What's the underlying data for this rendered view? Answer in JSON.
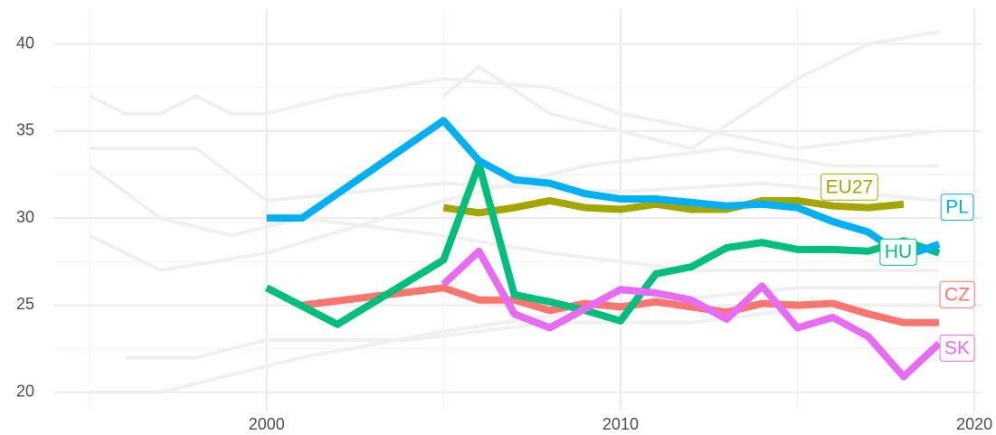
{
  "chart_data": {
    "type": "line",
    "xlim": [
      1994,
      2020.2
    ],
    "xticks": [
      2000,
      2010,
      2020
    ],
    "x_minor_ticks": [
      1995,
      2005,
      2015
    ],
    "ylim": [
      18.9,
      42
    ],
    "yticks": [
      20,
      25,
      30,
      35,
      40
    ],
    "y_minor_ticks": [
      22.5,
      27.5,
      32.5,
      37.5
    ],
    "grid": true,
    "series": [
      {
        "color": "#f0f0f0",
        "x": [
          1995,
          1996,
          1997,
          1998,
          1999,
          2000,
          2002,
          2005,
          2008,
          2010,
          2015,
          2019
        ],
        "values": [
          37,
          36,
          36,
          37,
          36,
          36,
          37,
          38,
          37.5,
          36,
          34,
          35
        ]
      },
      {
        "color": "#f0f0f0",
        "x": [
          1995,
          1997,
          1999,
          2001,
          2005,
          2008,
          2012,
          2016,
          2019
        ],
        "values": [
          33,
          30,
          29,
          30,
          29,
          28,
          27,
          27,
          27
        ]
      },
      {
        "color": "#f0f0f0",
        "x": [
          1996,
          1998,
          2000,
          2004,
          2008,
          2012,
          2016,
          2019
        ],
        "values": [
          22,
          22,
          23,
          23,
          24,
          24,
          25,
          25
        ]
      },
      {
        "color": "#f0f0f0",
        "x": [
          1995,
          1997,
          1999,
          2001,
          2005,
          2010,
          2015,
          2019
        ],
        "values": [
          20,
          20,
          21,
          22,
          23.5,
          25,
          26,
          26
        ]
      },
      {
        "color": "#f0f0f0",
        "x": [
          2005,
          2006,
          2008,
          2012,
          2015,
          2017,
          2019
        ],
        "values": [
          37,
          38.7,
          36,
          34,
          38,
          40,
          40.7
        ]
      },
      {
        "color": "#f0f0f0",
        "x": [
          1995,
          1997,
          2000,
          2005,
          2009,
          2013,
          2016,
          2019
        ],
        "values": [
          29,
          27,
          28,
          31,
          33,
          34,
          33,
          33
        ]
      },
      {
        "color": "#f0f0f0",
        "x": [
          1995,
          1998,
          2000,
          2005,
          2010,
          2014,
          2019
        ],
        "values": [
          34,
          34,
          31,
          32,
          31.5,
          32,
          31
        ]
      },
      {
        "name": "CZ",
        "color": "#f8766d",
        "x": [
          2001,
          2005,
          2006,
          2007,
          2008,
          2009,
          2010,
          2011,
          2012,
          2013,
          2014,
          2015,
          2016,
          2017,
          2018,
          2019
        ],
        "values": [
          25.0,
          26.0,
          25.3,
          25.3,
          24.7,
          25.1,
          24.9,
          25.2,
          24.9,
          24.6,
          25.1,
          25.0,
          25.1,
          24.5,
          24.0,
          24.0
        ]
      },
      {
        "name": "EU27",
        "color": "#a3a500",
        "x": [
          2005,
          2006,
          2007,
          2008,
          2009,
          2010,
          2011,
          2012,
          2013,
          2014,
          2015,
          2016,
          2017,
          2018
        ],
        "values": [
          30.6,
          30.3,
          30.6,
          31.0,
          30.6,
          30.5,
          30.8,
          30.5,
          30.5,
          31.0,
          31.0,
          30.7,
          30.6,
          30.8
        ]
      },
      {
        "name": "HU",
        "color": "#00bf7d",
        "x": [
          2000,
          2002,
          2005,
          2006,
          2007,
          2008,
          2009,
          2010,
          2011,
          2012,
          2013,
          2014,
          2015,
          2016,
          2017,
          2018,
          2019
        ],
        "values": [
          26.0,
          23.9,
          27.6,
          33.1,
          25.6,
          25.2,
          24.7,
          24.1,
          26.8,
          27.2,
          28.3,
          28.6,
          28.2,
          28.2,
          28.1,
          28.7,
          28.0
        ]
      },
      {
        "name": "PL",
        "color": "#00b0f6",
        "x": [
          2000,
          2001,
          2005,
          2006,
          2007,
          2008,
          2009,
          2010,
          2011,
          2012,
          2013,
          2014,
          2015,
          2016,
          2017,
          2018,
          2019
        ],
        "values": [
          30.0,
          30.0,
          35.6,
          33.3,
          32.2,
          32.0,
          31.4,
          31.1,
          31.1,
          30.9,
          30.7,
          30.8,
          30.6,
          29.8,
          29.2,
          27.8,
          28.5
        ]
      },
      {
        "name": "SK",
        "color": "#e76bf3",
        "x": [
          2005,
          2006,
          2007,
          2008,
          2009,
          2010,
          2011,
          2012,
          2013,
          2014,
          2015,
          2016,
          2017,
          2018,
          2019
        ],
        "values": [
          26.2,
          28.1,
          24.5,
          23.7,
          24.8,
          25.9,
          25.7,
          25.3,
          24.2,
          26.1,
          23.7,
          24.3,
          23.2,
          20.9,
          22.8
        ]
      }
    ]
  }
}
